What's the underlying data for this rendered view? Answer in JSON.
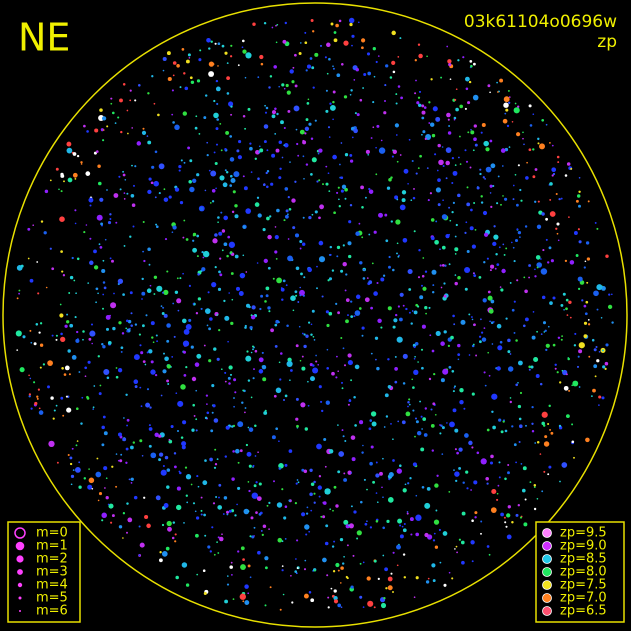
{
  "header": {
    "direction": "NE",
    "image_id": "03k61104o0696w",
    "color_key": "zp"
  },
  "legend_magnitude": [
    "m=0",
    "m=1",
    "m=2",
    "m=3",
    "m=4",
    "m=5",
    "m=6"
  ],
  "legend_zp": [
    {
      "label": "zp=9.5",
      "color": "#ff80ff"
    },
    {
      "label": "zp=9.0",
      "color": "#d030ff"
    },
    {
      "label": "zp=8.5",
      "color": "#20c8e8"
    },
    {
      "label": "zp=8.0",
      "color": "#20e860"
    },
    {
      "label": "zp=7.5",
      "color": "#f0e020"
    },
    {
      "label": "zp=7.0",
      "color": "#ff8020"
    },
    {
      "label": "zp=6.5",
      "color": "#ff5070"
    }
  ]
}
